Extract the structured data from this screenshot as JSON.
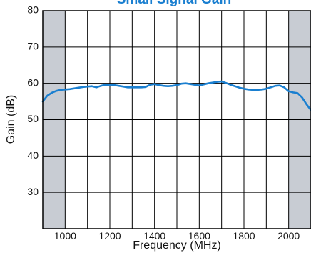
{
  "chart_data": {
    "type": "line",
    "title": "Small Signal Gain",
    "xlabel": "Frequency (MHz)",
    "ylabel": "Gain (dB)",
    "xlim": [
      900,
      2100
    ],
    "ylim": [
      20,
      80
    ],
    "x_ticks": [
      1000,
      1200,
      1400,
      1600,
      1800,
      2000
    ],
    "y_ticks": [
      30,
      40,
      50,
      60,
      70,
      80
    ],
    "grid": true,
    "shaded_x_ranges": [
      [
        900,
        1000
      ],
      [
        2000,
        2100
      ]
    ],
    "colors": {
      "line": "#1a7fd0",
      "title": "#1a7fd0",
      "shade": "#c8ccd3",
      "grid": "#000000"
    },
    "series": [
      {
        "x": [
          900,
          920,
          940,
          960,
          980,
          1000,
          1020,
          1040,
          1060,
          1080,
          1100,
          1120,
          1140,
          1160,
          1180,
          1200,
          1220,
          1240,
          1260,
          1280,
          1300,
          1320,
          1340,
          1360,
          1380,
          1400,
          1420,
          1440,
          1460,
          1480,
          1500,
          1520,
          1540,
          1560,
          1580,
          1600,
          1620,
          1640,
          1660,
          1680,
          1700,
          1720,
          1740,
          1760,
          1780,
          1800,
          1820,
          1840,
          1860,
          1880,
          1900,
          1920,
          1940,
          1960,
          1980,
          2000,
          2020,
          2040,
          2060,
          2080,
          2100
        ],
        "y": [
          55.0,
          56.6,
          57.4,
          57.9,
          58.2,
          58.3,
          58.4,
          58.6,
          58.8,
          59.0,
          59.1,
          59.2,
          58.9,
          59.3,
          59.6,
          59.6,
          59.5,
          59.3,
          59.1,
          58.9,
          58.9,
          58.9,
          58.9,
          59.0,
          59.6,
          59.8,
          59.5,
          59.3,
          59.2,
          59.3,
          59.5,
          59.9,
          60.0,
          59.8,
          59.6,
          59.4,
          59.7,
          60.0,
          60.2,
          60.4,
          60.5,
          60.1,
          59.6,
          59.2,
          58.8,
          58.5,
          58.3,
          58.2,
          58.2,
          58.3,
          58.5,
          58.9,
          59.3,
          59.4,
          58.9,
          57.8,
          57.5,
          57.3,
          56.1,
          54.2,
          52.6
        ]
      }
    ]
  }
}
